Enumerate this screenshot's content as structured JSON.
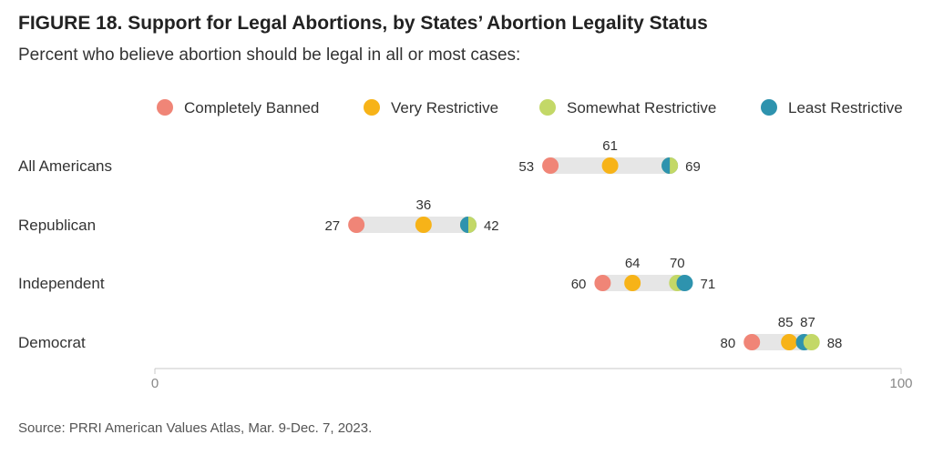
{
  "title": "FIGURE 18. Support for Legal Abortions, by States’ Abortion Legality Status",
  "subtitle": "Percent who believe abortion should be legal in all or most cases:",
  "source": "Source: PRRI American Values Atlas, Mar. 9-Dec. 7, 2023.",
  "chart_data": {
    "type": "dot-range",
    "xlim": [
      0,
      100
    ],
    "x_ticks": [
      "0",
      "100"
    ],
    "grid": false,
    "legend_position": "top",
    "series": [
      {
        "name": "Completely Banned",
        "color": "#F08577"
      },
      {
        "name": "Very Restrictive",
        "color": "#F7B318"
      },
      {
        "name": "Somewhat Restrictive",
        "color": "#C3D867"
      },
      {
        "name": "Least Restrictive",
        "color": "#2E93AE"
      }
    ],
    "categories": [
      "All Americans",
      "Republican",
      "Independent",
      "Democrat"
    ],
    "values": [
      [
        53,
        61,
        69,
        69
      ],
      [
        27,
        36,
        42,
        42
      ],
      [
        60,
        64,
        70,
        71
      ],
      [
        80,
        85,
        88,
        87
      ]
    ],
    "data_labels": [
      [
        "53",
        "61",
        "",
        "69"
      ],
      [
        "27",
        "36",
        "",
        "42"
      ],
      [
        "60",
        "64",
        "70",
        "71"
      ],
      [
        "80",
        "85",
        "88",
        "87"
      ]
    ]
  }
}
